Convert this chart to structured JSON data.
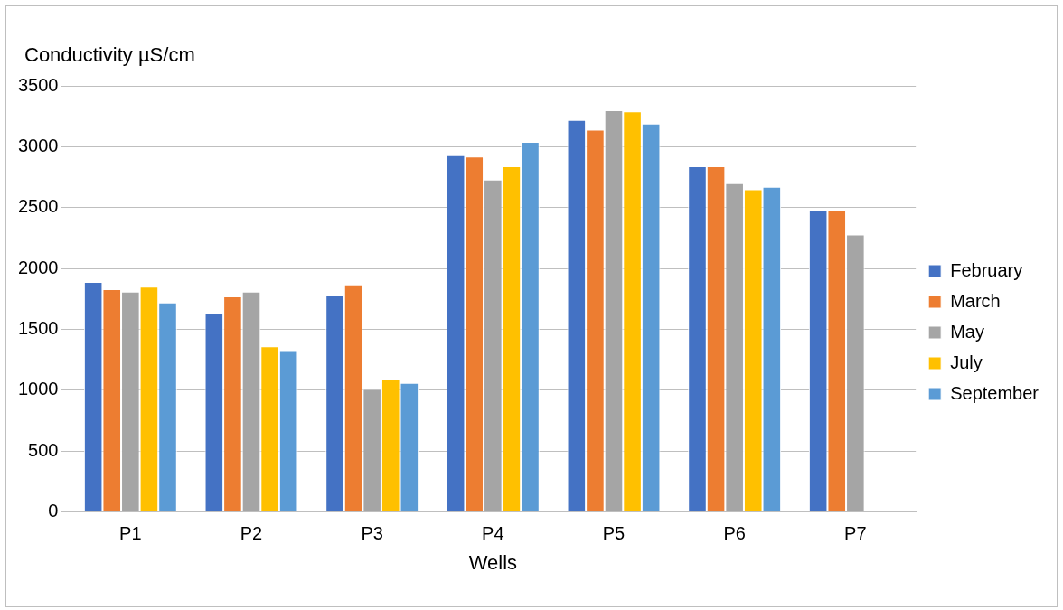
{
  "chart_data": {
    "type": "bar",
    "xlabel": "Wells",
    "ylabel": "Conductivity µS/cm",
    "categories": [
      "P1",
      "P2",
      "P3",
      "P4",
      "P5",
      "P6",
      "P7"
    ],
    "series": [
      {
        "name": "February",
        "color": "#4472c4",
        "values": [
          1890,
          1630,
          1780,
          2930,
          3220,
          2840,
          2480
        ]
      },
      {
        "name": "March",
        "color": "#ed7d31",
        "values": [
          1830,
          1770,
          1870,
          2920,
          3140,
          2840,
          2480
        ]
      },
      {
        "name": "May",
        "color": "#a5a5a5",
        "values": [
          1810,
          1810,
          1010,
          2730,
          3300,
          2700,
          2280
        ]
      },
      {
        "name": "July",
        "color": "#ffc000",
        "values": [
          1850,
          1360,
          1090,
          2840,
          3290,
          2650,
          null
        ]
      },
      {
        "name": "September",
        "color": "#5b9bd5",
        "values": [
          1720,
          1330,
          1060,
          3040,
          3190,
          2670,
          null
        ]
      }
    ],
    "ylim": [
      0,
      3500
    ],
    "yticks": [
      0,
      500,
      1000,
      1500,
      2000,
      2500,
      3000,
      3500
    ],
    "grid": "y",
    "legend": "right"
  }
}
